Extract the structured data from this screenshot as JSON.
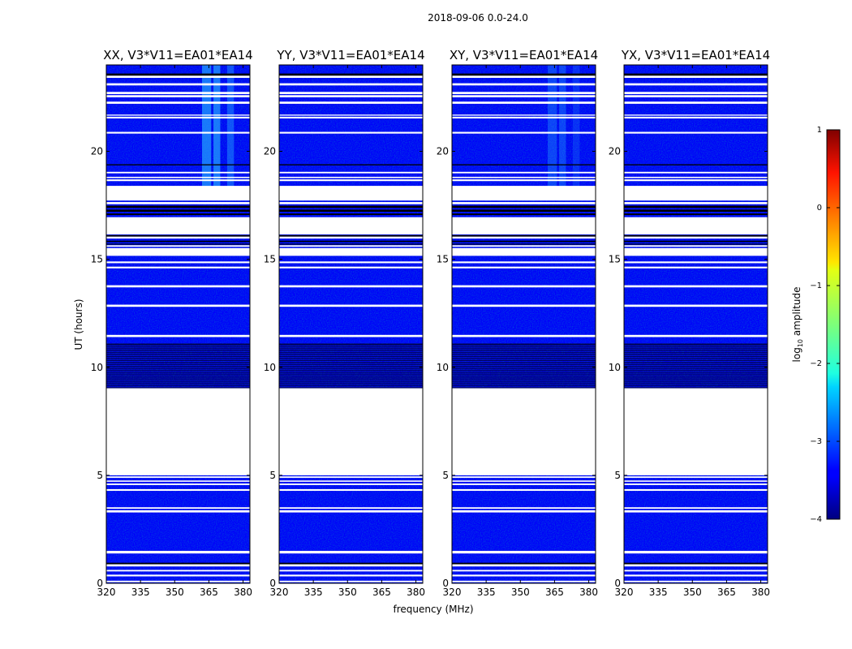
{
  "chart_data": {
    "type": "heatmap",
    "title": "2018-09-06 0.0-24.0",
    "xlabel": "frequency (MHz)",
    "ylabel": "UT (hours)",
    "xlim": [
      320,
      383
    ],
    "ylim": [
      0,
      24
    ],
    "xticks": [
      "320",
      "335",
      "350",
      "365",
      "380"
    ],
    "xtick_values": [
      320,
      335,
      350,
      365,
      380
    ],
    "yticks": [
      "0",
      "5",
      "10",
      "15",
      "20"
    ],
    "ytick_values": [
      0,
      5,
      10,
      15,
      20
    ],
    "panels": [
      {
        "title": "XX, V3*V11=EA01*EA14",
        "rfi_level": 0.9
      },
      {
        "title": "YY, V3*V11=EA01*EA14",
        "rfi_level": 0.0
      },
      {
        "title": "XY, V3*V11=EA01*EA14",
        "rfi_level": 0.45
      },
      {
        "title": "YX, V3*V11=EA01*EA14",
        "rfi_level": 0.0
      }
    ],
    "background_log_amplitude": -3.4,
    "rfi_band_mhz": [
      [
        362,
        366
      ],
      [
        367,
        370
      ],
      [
        373,
        376
      ]
    ],
    "rfi_time_hours": [
      [
        18.3,
        24.0
      ]
    ],
    "blank_intervals_ut": [
      [
        0.05,
        0.12
      ],
      [
        0.32,
        0.4
      ],
      [
        0.55,
        0.62
      ],
      [
        0.78,
        0.88
      ],
      [
        1.38,
        1.5
      ],
      [
        3.28,
        3.38
      ],
      [
        3.45,
        3.52
      ],
      [
        4.28,
        4.36
      ],
      [
        4.55,
        4.62
      ],
      [
        4.7,
        4.76
      ],
      [
        4.88,
        4.95
      ],
      [
        5.0,
        9.03
      ],
      [
        11.4,
        11.5
      ],
      [
        12.8,
        12.9
      ],
      [
        13.7,
        13.8
      ],
      [
        14.58,
        14.66
      ],
      [
        14.82,
        14.9
      ],
      [
        15.16,
        15.52
      ],
      [
        15.58,
        15.65
      ],
      [
        15.96,
        16.05
      ],
      [
        16.15,
        16.95
      ],
      [
        17.55,
        17.65
      ],
      [
        17.72,
        18.4
      ],
      [
        18.62,
        18.7
      ],
      [
        18.76,
        18.82
      ],
      [
        18.98,
        19.05
      ],
      [
        20.82,
        20.9
      ],
      [
        21.52,
        21.6
      ],
      [
        21.65,
        21.7
      ],
      [
        22.2,
        22.3
      ],
      [
        22.5,
        22.6
      ],
      [
        22.65,
        22.75
      ],
      [
        23.05,
        23.15
      ],
      [
        23.4,
        23.5
      ]
    ],
    "dark_intervals_ut": [
      [
        0.88,
        0.95
      ],
      [
        9.03,
        11.1
      ],
      [
        15.68,
        15.72
      ],
      [
        15.8,
        15.86
      ],
      [
        16.05,
        16.12
      ],
      [
        17.05,
        17.12
      ],
      [
        17.2,
        17.3
      ],
      [
        17.38,
        17.48
      ],
      [
        19.35,
        19.4
      ],
      [
        23.5,
        23.6
      ]
    ],
    "colorbar": {
      "label": "log10 amplitude",
      "min": -4,
      "max": 1,
      "ticks": [
        "1",
        "0",
        "−1",
        "−2",
        "−3",
        "−4"
      ],
      "tick_values": [
        1,
        0,
        -1,
        -2,
        -3,
        -4
      ],
      "colormap": "jet"
    }
  }
}
